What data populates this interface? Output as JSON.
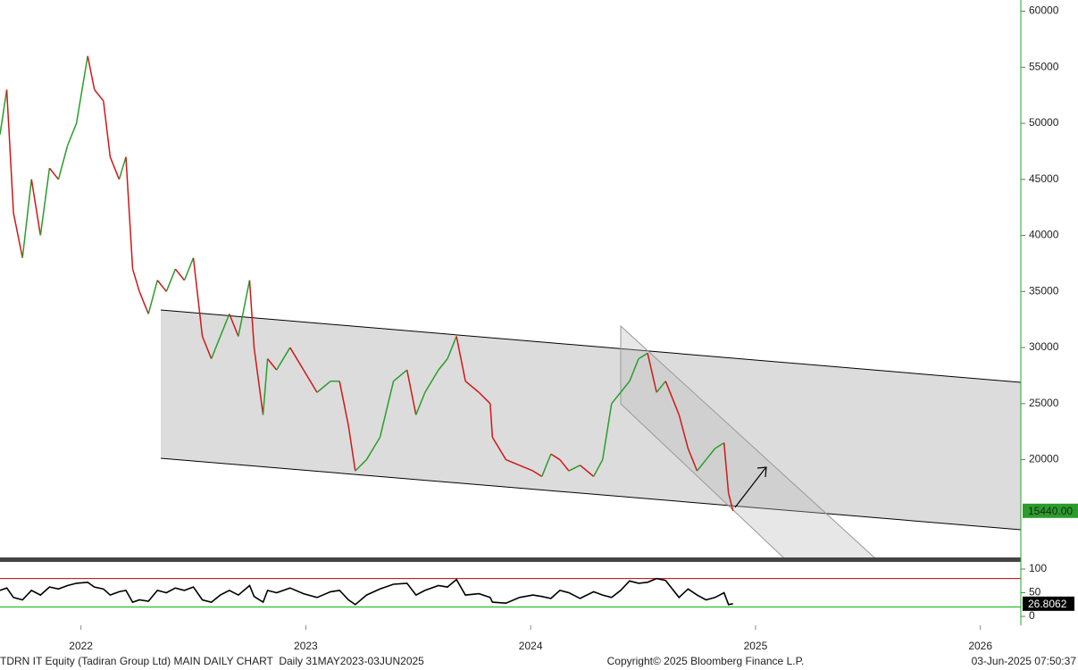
{
  "chart_data": [
    {
      "type": "line",
      "x": [
        2021.64,
        2021.67,
        2021.7,
        2021.74,
        2021.78,
        2021.82,
        2021.86,
        2021.9,
        2021.94,
        2021.98,
        2022.03,
        2022.06,
        2022.1,
        2022.13,
        2022.17,
        2022.2,
        2022.23,
        2022.26,
        2022.3,
        2022.34,
        2022.38,
        2022.42,
        2022.46,
        2022.5,
        2022.54,
        2022.58,
        2022.62,
        2022.66,
        2022.7,
        2022.75,
        2022.77,
        2022.81,
        2022.83,
        2022.87,
        2022.93,
        2022.99,
        2023.05,
        2023.11,
        2023.15,
        2023.19,
        2023.22,
        2023.27,
        2023.33,
        2023.39,
        2023.45,
        2023.49,
        2023.53,
        2023.59,
        2023.63,
        2023.67,
        2023.71,
        2023.77,
        2023.82,
        2023.83,
        2023.89,
        2023.95,
        2024.01,
        2024.05,
        2024.09,
        2024.13,
        2024.17,
        2024.22,
        2024.28,
        2024.32,
        2024.36,
        2024.4,
        2024.44,
        2024.48,
        2024.52,
        2024.56,
        2024.6,
        2024.66,
        2024.7,
        2024.74,
        2024.78,
        2024.82,
        2024.86,
        2024.88,
        2024.9
      ],
      "values": [
        49000,
        53000,
        42000,
        38000,
        45000,
        40000,
        46000,
        45000,
        48000,
        50000,
        56000,
        53000,
        52000,
        47000,
        45000,
        47000,
        37000,
        35000,
        33000,
        36000,
        35000,
        37000,
        36000,
        38000,
        31000,
        29000,
        31000,
        33000,
        31000,
        36000,
        30000,
        24000,
        29000,
        28000,
        30000,
        28000,
        26000,
        27000,
        27000,
        23000,
        19000,
        20000,
        22000,
        27000,
        28000,
        24000,
        26000,
        28000,
        29000,
        31000,
        27000,
        26000,
        25000,
        22000,
        20000,
        19500,
        19000,
        18500,
        20500,
        20000,
        19000,
        19500,
        18500,
        20000,
        25000,
        26000,
        27000,
        29000,
        29500,
        26000,
        27000,
        24000,
        21000,
        19000,
        20000,
        21000,
        21500,
        17000,
        15440
      ],
      "up_color": "#2a9d2a",
      "down_color": "#d01818",
      "xlim": [
        2021.64,
        2026.18
      ],
      "xticks": [
        2022,
        2023,
        2024,
        2025,
        2026
      ],
      "ylim": [
        11200,
        61000
      ],
      "yticks": [
        20000,
        25000,
        30000,
        35000,
        40000,
        45000,
        50000,
        55000,
        60000
      ],
      "last_value": {
        "value": 15440,
        "label": "15440.00"
      }
    },
    {
      "type": "line",
      "values": [
        55,
        60,
        40,
        35,
        55,
        45,
        62,
        58,
        65,
        70,
        72,
        62,
        58,
        45,
        52,
        55,
        30,
        35,
        32,
        55,
        50,
        60,
        55,
        62,
        35,
        30,
        45,
        55,
        45,
        65,
        42,
        30,
        55,
        50,
        60,
        48,
        40,
        52,
        55,
        35,
        25,
        45,
        58,
        68,
        70,
        45,
        55,
        65,
        62,
        78,
        45,
        48,
        40,
        30,
        28,
        40,
        45,
        42,
        38,
        55,
        50,
        38,
        52,
        45,
        40,
        55,
        75,
        70,
        72,
        80,
        76,
        40,
        58,
        45,
        35,
        40,
        50,
        25,
        26.8062
      ],
      "color": "#000000",
      "ylim": [
        0,
        100
      ],
      "yticks": [
        0,
        50,
        100
      ],
      "levels": [
        {
          "value": 80,
          "color": "#c00000"
        },
        {
          "value": 20,
          "color": "#00b000"
        }
      ],
      "last_value": {
        "value": 26.8062,
        "label": "26.8062"
      }
    }
  ],
  "footer": {
    "left": "TDRN IT Equity (Tadiran Group Ltd) MAIN DAILY CHART  Daily 31MAY2023-03JUN2025",
    "center": "Copyright© 2025 Bloomberg Finance L.P.",
    "right": "03-Jun-2025 07:50:37"
  }
}
